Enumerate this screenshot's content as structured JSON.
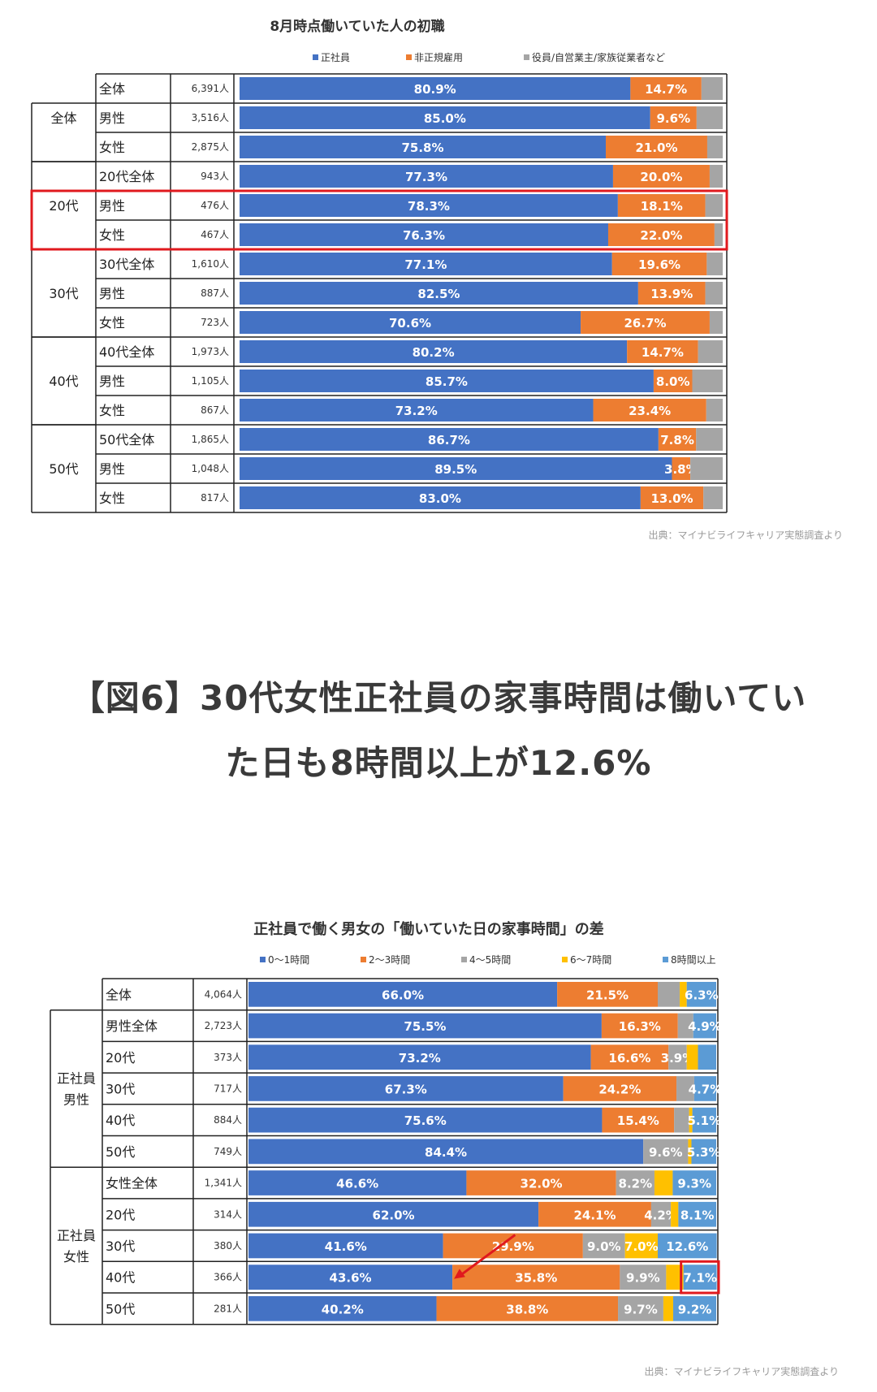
{
  "heading": {
    "line1": "【図6】30代女性正社員の家事時間は働いてい",
    "line2": "た日も8時間以上が12.6%"
  },
  "colors": {
    "blue": "#4472c4",
    "orange": "#ed7d31",
    "gray": "#a5a5a5",
    "yellow": "#ffc000",
    "lightblue": "#5b9bd5",
    "highlight": "#e0191e"
  },
  "chart_data": [
    {
      "type": "bar",
      "orientation": "horizontal",
      "stacked": "percent",
      "title": "8月時点働いていた人の初職",
      "source": "出典：マイナビライフキャリア実態調査より",
      "series_names": [
        "正社員",
        "非正規雇用",
        "役員/自営業主/家族従業者など"
      ],
      "groups": [
        {
          "label": "",
          "rows": [
            {
              "label": "全体",
              "n": "6,391人",
              "values": [
                80.9,
                14.7,
                4.4
              ],
              "labels": [
                "80.9%",
                "14.7%",
                ""
              ]
            }
          ]
        },
        {
          "label": "全体",
          "rows": [
            {
              "label": "男性",
              "n": "3,516人",
              "values": [
                85.0,
                9.6,
                5.4
              ],
              "labels": [
                "85.0%",
                "9.6%",
                ""
              ]
            },
            {
              "label": "女性",
              "n": "2,875人",
              "values": [
                75.8,
                21.0,
                3.2
              ],
              "labels": [
                "75.8%",
                "21.0%",
                ""
              ]
            }
          ]
        },
        {
          "label": "",
          "rows": [
            {
              "label": "20代全体",
              "n": "943人",
              "values": [
                77.3,
                20.0,
                2.7
              ],
              "labels": [
                "77.3%",
                "20.0%",
                ""
              ]
            }
          ]
        },
        {
          "label": "20代",
          "highlight": true,
          "rows": [
            {
              "label": "男性",
              "n": "476人",
              "values": [
                78.3,
                18.1,
                3.6
              ],
              "labels": [
                "78.3%",
                "18.1%",
                ""
              ]
            },
            {
              "label": "女性",
              "n": "467人",
              "values": [
                76.3,
                22.0,
                1.7
              ],
              "labels": [
                "76.3%",
                "22.0%",
                ""
              ]
            }
          ]
        },
        {
          "label": "30代",
          "rows": [
            {
              "label": "30代全体",
              "n": "1,610人",
              "values": [
                77.1,
                19.6,
                3.3
              ],
              "labels": [
                "77.1%",
                "19.6%",
                ""
              ]
            },
            {
              "label": "男性",
              "n": "887人",
              "values": [
                82.5,
                13.9,
                3.6
              ],
              "labels": [
                "82.5%",
                "13.9%",
                ""
              ]
            },
            {
              "label": "女性",
              "n": "723人",
              "values": [
                70.6,
                26.7,
                2.7
              ],
              "labels": [
                "70.6%",
                "26.7%",
                ""
              ]
            }
          ]
        },
        {
          "label": "40代",
          "rows": [
            {
              "label": "40代全体",
              "n": "1,973人",
              "values": [
                80.2,
                14.7,
                5.1
              ],
              "labels": [
                "80.2%",
                "14.7%",
                ""
              ]
            },
            {
              "label": "男性",
              "n": "1,105人",
              "values": [
                85.7,
                8.0,
                6.3
              ],
              "labels": [
                "85.7%",
                "8.0%",
                ""
              ]
            },
            {
              "label": "女性",
              "n": "867人",
              "values": [
                73.2,
                23.4,
                3.4
              ],
              "labels": [
                "73.2%",
                "23.4%",
                ""
              ]
            }
          ]
        },
        {
          "label": "50代",
          "rows": [
            {
              "label": "50代全体",
              "n": "1,865人",
              "values": [
                86.7,
                7.8,
                5.5
              ],
              "labels": [
                "86.7%",
                "7.8%",
                ""
              ]
            },
            {
              "label": "男性",
              "n": "1,048人",
              "values": [
                89.5,
                3.8,
                6.7
              ],
              "labels": [
                "89.5%",
                "3.8%",
                ""
              ]
            },
            {
              "label": "女性",
              "n": "817人",
              "values": [
                83.0,
                13.0,
                4.0
              ],
              "labels": [
                "83.0%",
                "13.0%",
                ""
              ]
            }
          ]
        }
      ],
      "xlim": [
        0,
        100
      ]
    },
    {
      "type": "bar",
      "orientation": "horizontal",
      "stacked": "percent",
      "title": "正社員で働く男女の「働いていた日の家事時間」の差",
      "source": "出典：マイナビライフキャリア実態調査より",
      "series_names": [
        "0～1時間",
        "2～3時間",
        "4～5時間",
        "6～7時間",
        "8時間以上"
      ],
      "groups": [
        {
          "label": "",
          "rows": [
            {
              "label": "全体",
              "n": "4,064人",
              "values": [
                66.0,
                21.5,
                4.7,
                1.5,
                6.3
              ],
              "labels": [
                "66.0%",
                "21.5%",
                "",
                "",
                "6.3%"
              ]
            }
          ]
        },
        {
          "label": "正社員\n男性",
          "rows": [
            {
              "label": "男性全体",
              "n": "2,723人",
              "values": [
                75.5,
                16.3,
                3.3,
                0.0,
                4.9
              ],
              "labels": [
                "75.5%",
                "16.3%",
                "",
                "",
                "4.9%"
              ]
            },
            {
              "label": "20代",
              "n": "373人",
              "values": [
                73.2,
                16.6,
                3.9,
                2.4,
                3.9
              ],
              "labels": [
                "73.2%",
                "16.6%",
                "3.9%",
                "",
                ""
              ]
            },
            {
              "label": "30代",
              "n": "717人",
              "values": [
                67.3,
                24.2,
                3.8,
                0.0,
                4.7
              ],
              "labels": [
                "67.3%",
                "24.2%",
                "",
                "",
                "4.7%"
              ]
            },
            {
              "label": "40代",
              "n": "884人",
              "values": [
                75.6,
                15.4,
                3.2,
                0.7,
                5.1
              ],
              "labels": [
                "75.6%",
                "15.4%",
                "",
                "",
                "5.1%"
              ]
            },
            {
              "label": "50代",
              "n": "749人",
              "values": [
                84.4,
                0.0,
                9.6,
                0.7,
                5.3
              ],
              "labels": [
                "84.4%",
                "",
                "9.6%",
                "",
                "5.3%"
              ]
            }
          ]
        },
        {
          "label": "正社員\n女性",
          "rows": [
            {
              "label": "女性全体",
              "n": "1,341人",
              "values": [
                46.6,
                32.0,
                8.2,
                3.9,
                9.3
              ],
              "labels": [
                "46.6%",
                "32.0%",
                "8.2%",
                "",
                "9.3%"
              ]
            },
            {
              "label": "20代",
              "n": "314人",
              "values": [
                62.0,
                24.1,
                4.2,
                1.6,
                8.1
              ],
              "labels": [
                "62.0%",
                "24.1%",
                "4.2%",
                "",
                "8.1%"
              ]
            },
            {
              "label": "30代",
              "n": "380人",
              "values": [
                41.6,
                29.9,
                9.0,
                7.0,
                12.6
              ],
              "labels": [
                "41.6%",
                "29.9%",
                "9.0%",
                "7.0%",
                "12.6%"
              ]
            },
            {
              "label": "40代",
              "n": "366人",
              "values": [
                43.6,
                35.8,
                9.9,
                3.7,
                7.1
              ],
              "labels": [
                "43.6%",
                "35.8%",
                "9.9%",
                "",
                "7.1%"
              ]
            },
            {
              "label": "50代",
              "n": "281人",
              "values": [
                40.2,
                38.8,
                9.7,
                2.1,
                9.2
              ],
              "labels": [
                "40.2%",
                "38.8%",
                "9.7%",
                "",
                "9.2%"
              ]
            }
          ]
        }
      ],
      "xlim": [
        0,
        100
      ]
    }
  ]
}
